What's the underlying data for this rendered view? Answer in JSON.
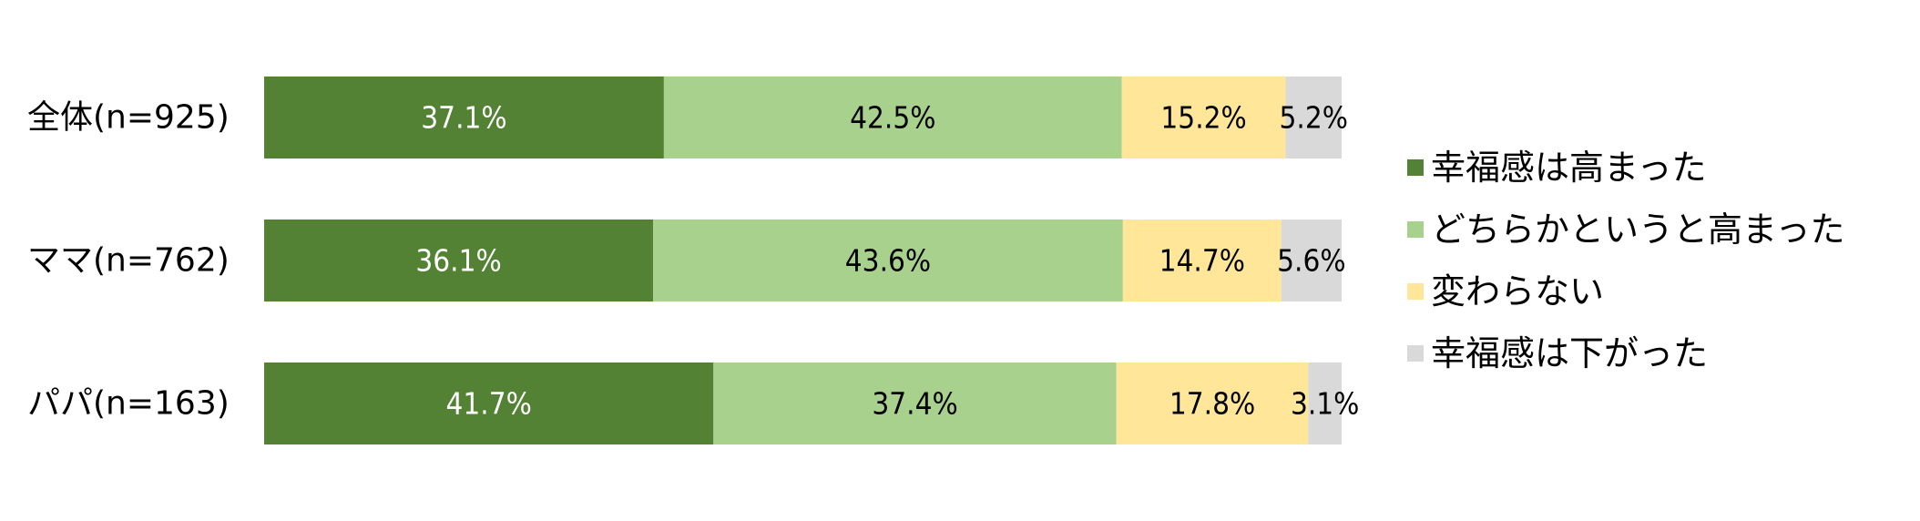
{
  "chart_data": {
    "type": "bar",
    "orientation": "horizontal",
    "stacked": true,
    "normalized_percent": true,
    "categories": [
      "全体(n=925)",
      "ママ(n=762)",
      "パパ(n=163)"
    ],
    "series": [
      {
        "name": "幸福感は高まった",
        "color": "#548235",
        "label_color": "#ffffff",
        "values": [
          37.1,
          36.1,
          41.7
        ],
        "labels": [
          "37.1%",
          "36.1%",
          "41.7%"
        ]
      },
      {
        "name": "どちらかというと高まった",
        "color": "#a9d18e",
        "label_color": "#000000",
        "values": [
          42.5,
          43.6,
          37.4
        ],
        "labels": [
          "42.5%",
          "43.6%",
          "37.4%"
        ]
      },
      {
        "name": "変わらない",
        "color": "#ffe699",
        "label_color": "#000000",
        "values": [
          15.2,
          14.7,
          17.8
        ],
        "labels": [
          "15.2%",
          "14.7%",
          "17.8%"
        ]
      },
      {
        "name": "幸福感は下がった",
        "color": "#d9d9d9",
        "label_color": "#000000",
        "values": [
          5.2,
          5.6,
          3.1
        ],
        "labels": [
          "5.2%",
          "5.6%",
          "3.1%"
        ]
      }
    ],
    "xlim": [
      0,
      100
    ],
    "grid": false,
    "legend_position": "right"
  }
}
